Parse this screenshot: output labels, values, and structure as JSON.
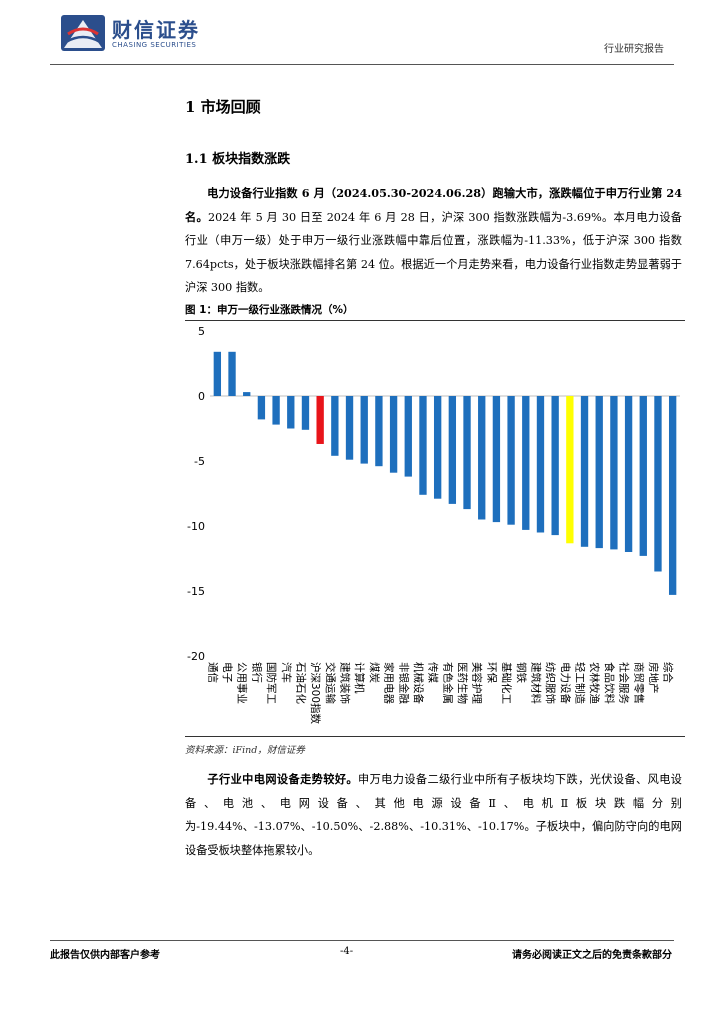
{
  "header": {
    "logo_cn": "财信证券",
    "logo_en": "CHASING SECURITIES",
    "report_type": "行业研究报告"
  },
  "section": {
    "h1": "1 市场回顾",
    "h2": "1.1 板块指数涨跌"
  },
  "para1": {
    "lead": "电力设备行业指数 6 月（2024.05.30-2024.06.28）跑输大市，涨跌幅位于申万行业第 24 名。",
    "body": "2024 年 5 月 30 日至 2024 年 6 月 28 日，沪深 300 指数涨跌幅为-3.69%。本月电力设备行业（申万一级）处于申万一级行业涨跌幅中靠后位置，涨跌幅为-11.33%，低于沪深 300 指数 7.64pcts，处于板块涨跌幅排名第 24 位。根据近一个月走势来看，电力设备行业指数走势显著弱于沪深 300 指数。"
  },
  "figure": {
    "title": "图 1：申万一级行业涨跌情况（%）",
    "source": "资料来源：iFind，财信证券"
  },
  "chart_data": {
    "type": "bar",
    "title": "申万一级行业涨跌情况（%）",
    "xlabel": "",
    "ylabel": "",
    "ylim": [
      -20,
      5
    ],
    "yticks": [
      5,
      0,
      -5,
      -10,
      -15,
      -20
    ],
    "grid": false,
    "categories": [
      "通信",
      "电子",
      "公用事业",
      "银行",
      "国防军工",
      "汽车",
      "石油石化",
      "沪深300指数",
      "交通运输",
      "建筑装饰",
      "计算机",
      "煤炭",
      "家用电器",
      "非银金融",
      "机械设备",
      "传媒",
      "有色金属",
      "医药生物",
      "美容护理",
      "环保",
      "基础化工",
      "钢铁",
      "建筑材料",
      "纺织服饰",
      "电力设备",
      "轻工制造",
      "农林牧渔",
      "食品饮料",
      "社会服务",
      "商贸零售",
      "房地产",
      "综合"
    ],
    "values": [
      3.4,
      3.4,
      0.3,
      -1.8,
      -2.2,
      -2.5,
      -2.6,
      -3.69,
      -4.6,
      -4.9,
      -5.2,
      -5.4,
      -5.9,
      -6.2,
      -7.6,
      -7.9,
      -8.3,
      -8.7,
      -9.5,
      -9.7,
      -9.9,
      -10.3,
      -10.5,
      -10.7,
      -11.33,
      -11.6,
      -11.7,
      -11.8,
      -12.0,
      -12.3,
      -13.5,
      -15.3
    ],
    "highlight": {
      "沪深300指数": "#e8141a",
      "电力设备": "#ffff00"
    },
    "colors": {
      "default": "#1e6fbd",
      "benchmark": "#e8141a",
      "industry": "#ffff00"
    }
  },
  "para2": {
    "lead": "子行业中电网设备走势较好。",
    "body": "申万电力设备二级行业中所有子板块均下跌，光伏设备、风电设备、电池、电网设备、其他电源设备Ⅱ、电机Ⅱ板块跌幅分别为-19.44%、-13.07%、-10.50%、-2.88%、-10.31%、-10.17%。子板块中，偏向防守向的电网设备受板块整体拖累较小。"
  },
  "footer": {
    "left": "此报告仅供内部客户参考",
    "page": "-4-",
    "right": "请务必阅读正文之后的免责条款部分"
  }
}
